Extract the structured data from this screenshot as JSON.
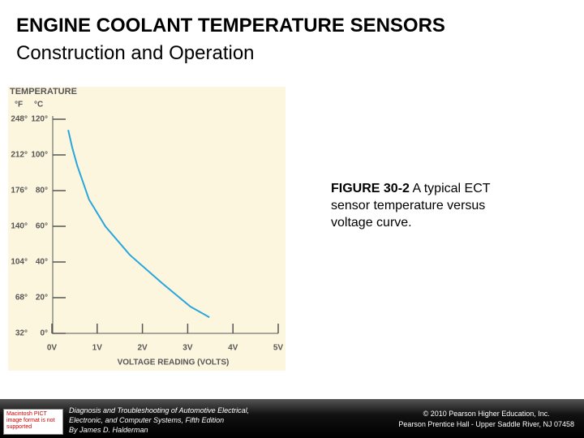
{
  "header": {
    "title": "ENGINE COOLANT TEMPERATURE SENSORS",
    "subtitle": "Construction and Operation"
  },
  "chart_data": {
    "type": "line",
    "ylabel": "TEMPERATURE",
    "ylabel_units": [
      "°F",
      "°C"
    ],
    "xlabel": "VOLTAGE READING (VOLTS)",
    "xlim": [
      0,
      5
    ],
    "xticks": [
      {
        "value": 0,
        "label": "0V"
      },
      {
        "value": 1,
        "label": "1V"
      },
      {
        "value": 2,
        "label": "2V"
      },
      {
        "value": 3,
        "label": "3V"
      },
      {
        "value": 4,
        "label": "4V"
      },
      {
        "value": 5,
        "label": "5V"
      }
    ],
    "ylim": [
      0,
      120
    ],
    "yticks": [
      {
        "value": 0,
        "label": "0°"
      },
      {
        "value": 20,
        "label": "20°"
      },
      {
        "value": 40,
        "label": "40°"
      },
      {
        "value": 60,
        "label": "60°"
      },
      {
        "value": 80,
        "label": "80°"
      },
      {
        "value": 100,
        "label": "100°"
      },
      {
        "value": 120,
        "label": "120°"
      }
    ],
    "y2lim": [
      32,
      248
    ],
    "y2ticks": [
      {
        "value": 32,
        "label": "32°"
      },
      {
        "value": 68,
        "label": "68°"
      },
      {
        "value": 104,
        "label": "104°"
      },
      {
        "value": 140,
        "label": "140°"
      },
      {
        "value": 176,
        "label": "176°"
      },
      {
        "value": 212,
        "label": "212°"
      },
      {
        "value": 248,
        "label": "248°"
      }
    ],
    "x": [
      0.36,
      0.45,
      0.56,
      0.82,
      1.18,
      1.72,
      2.44,
      3.06,
      3.48
    ],
    "series": [
      {
        "color": "#2aa6dd",
        "values": [
          114,
          104,
          94,
          75,
          60,
          44,
          28,
          15,
          9
        ]
      }
    ]
  },
  "caption": {
    "label": "FIGURE 30-2",
    "text": "A typical ECT sensor temperature versus voltage curve."
  },
  "logo": "Macintosh PICT image format is not supported",
  "footer": {
    "left": [
      "Diagnosis and Troubleshooting of Automotive Electrical,",
      "Electronic, and Computer Systems, Fifth Edition",
      "By James D. Halderman"
    ],
    "right": [
      "© 2010 Pearson Higher Education, Inc.",
      "Pearson Prentice Hall - Upper Saddle River, NJ 07458"
    ]
  }
}
